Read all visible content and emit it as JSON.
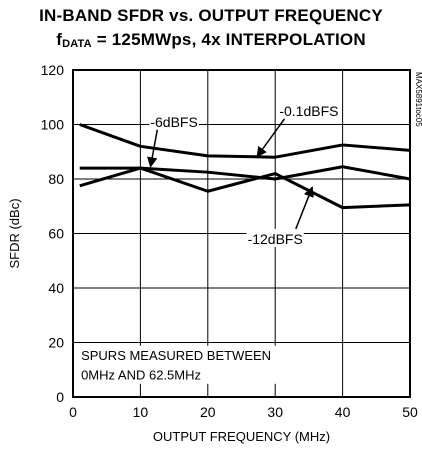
{
  "title_line1": "IN-BAND SFDR vs. OUTPUT FREQUENCY",
  "title_line2_f": "f",
  "title_line2_sub": "DATA",
  "title_line2_rest": " = 125MWps, 4x INTERPOLATION",
  "watermark": "MAX5891toc05",
  "note_line1": "SPURS MEASURED BETWEEN",
  "note_line2": "0MHz AND 62.5MHz",
  "chart_data": {
    "type": "line",
    "xlabel": "OUTPUT FREQUENCY (MHz)",
    "ylabel": "SFDR (dBc)",
    "xlim": [
      0,
      50
    ],
    "ylim": [
      0,
      120
    ],
    "xticks": [
      0,
      10,
      20,
      30,
      40,
      50
    ],
    "yticks": [
      0,
      20,
      40,
      60,
      80,
      100,
      120
    ],
    "grid": true,
    "x": [
      1,
      10,
      20,
      30,
      40,
      50
    ],
    "series": [
      {
        "name": "-0.1dBFS",
        "values": [
          100,
          92,
          88.5,
          88,
          92.5,
          90.5
        ],
        "stroke": "#000000"
      },
      {
        "name": "-6dBFS",
        "values": [
          84,
          84,
          82.5,
          80,
          84.5,
          80
        ],
        "stroke": "#000000"
      },
      {
        "name": "-12dBFS",
        "values": [
          77.5,
          84,
          75.5,
          82,
          69.5,
          70.5
        ],
        "stroke": "#000000"
      }
    ],
    "annotations": [
      {
        "text": "-0.1dBFS",
        "label_x": 35,
        "label_y": 105,
        "arrow_to": [
          27.3,
          88.2
        ]
      },
      {
        "text": "-6dBFS",
        "label_x": 15,
        "label_y": 101,
        "arrow_to": [
          11.5,
          84.5
        ]
      },
      {
        "text": "-12dBFS",
        "label_x": 30,
        "label_y": 58,
        "arrow_to": [
          35.5,
          77
        ]
      }
    ]
  }
}
